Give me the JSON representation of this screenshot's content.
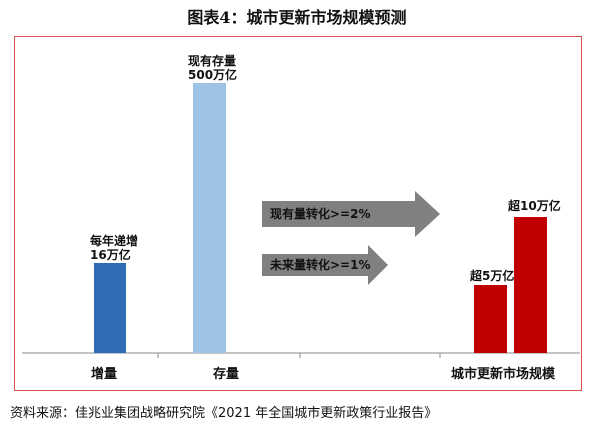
{
  "title": "图表4：城市更新市场规模预测",
  "chart_data": {
    "type": "bar",
    "groups": [
      {
        "label": "增量",
        "bars": [
          {
            "label": "每年递增\n16万亿",
            "value": 16,
            "color": "#2e6db4"
          }
        ]
      },
      {
        "label": "存量",
        "bars": [
          {
            "label": "现有存量\n500万亿",
            "value": 500,
            "color": "#9dc3e6"
          }
        ]
      },
      {
        "label": "城市更新市场规模",
        "bars": [
          {
            "label": "超5万亿",
            "value": 5,
            "color": "#c00000"
          },
          {
            "label": "超10万亿",
            "value": 10,
            "color": "#c00000"
          }
        ]
      }
    ],
    "arrows": [
      {
        "label": "现有量转化>=2%",
        "color": "#808080"
      },
      {
        "label": "未来量转化>=1%",
        "color": "#808080"
      }
    ]
  },
  "source": "资料来源：佳兆业集团战略研究院《2021 年全国城市更新政策行业报告》"
}
